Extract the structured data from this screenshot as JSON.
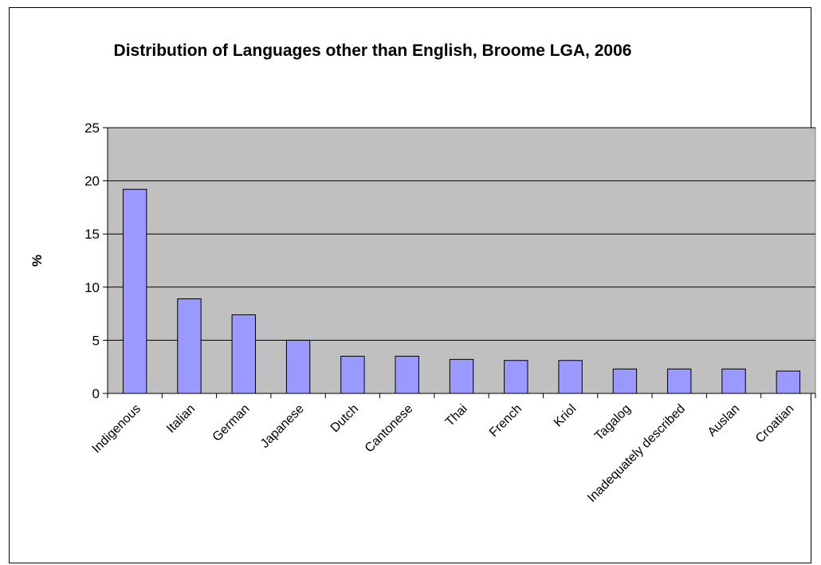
{
  "chart_data": {
    "type": "bar",
    "title": "Distribution of Languages other than English, Broome LGA, 2006",
    "xlabel": "",
    "ylabel": "%",
    "ylim": [
      0,
      25
    ],
    "yticks": [
      0,
      5,
      10,
      15,
      20,
      25
    ],
    "grid": true,
    "legend": "none",
    "categories": [
      "Indigenous",
      "Italian",
      "German",
      "Japanese",
      "Dutch",
      "Cantonese",
      "Thai",
      "French",
      "Kriol",
      "Tagalog",
      "Inadequately described",
      "Auslan",
      "Croatian"
    ],
    "values": [
      19.2,
      8.9,
      7.4,
      5.0,
      3.5,
      3.5,
      3.2,
      3.1,
      3.1,
      2.3,
      2.3,
      2.3,
      2.1
    ],
    "colors": {
      "bar": "#9999ff",
      "plot_background": "#c0c0c0",
      "gridline": "#000000"
    }
  }
}
